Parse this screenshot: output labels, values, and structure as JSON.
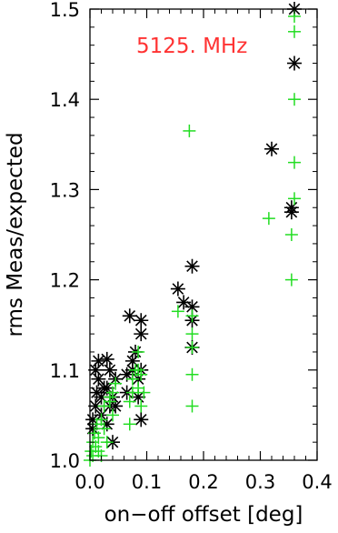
{
  "chart_data": {
    "type": "scatter",
    "annotation": "5125. MHz",
    "xlabel": "on−off offset [deg]",
    "ylabel": "rms Meas/expected",
    "xlim": [
      0.0,
      0.4
    ],
    "ylim": [
      1.0,
      1.5
    ],
    "xticks": [
      "0.0",
      "0.1",
      "0.2",
      "0.3",
      "0.4"
    ],
    "yticks": [
      "1.0",
      "1.1",
      "1.2",
      "1.3",
      "1.4",
      "1.5"
    ],
    "grid": false,
    "colors": {
      "annotation": "#ff3333",
      "asterisk_series": "#000000",
      "plus_series": "#22dd22"
    },
    "series": [
      {
        "marker": "asterisk",
        "color": "#000000",
        "points": [
          [
            0.005,
            1.035
          ],
          [
            0.005,
            1.045
          ],
          [
            0.01,
            1.06
          ],
          [
            0.01,
            1.1
          ],
          [
            0.012,
            1.075
          ],
          [
            0.015,
            1.11
          ],
          [
            0.015,
            1.09
          ],
          [
            0.02,
            1.05
          ],
          [
            0.02,
            1.07
          ],
          [
            0.025,
            1.08
          ],
          [
            0.03,
            1.112
          ],
          [
            0.03,
            1.08
          ],
          [
            0.03,
            1.04
          ],
          [
            0.035,
            1.06
          ],
          [
            0.035,
            1.1
          ],
          [
            0.04,
            1.07
          ],
          [
            0.045,
            1.09
          ],
          [
            0.045,
            1.06
          ],
          [
            0.04,
            1.02
          ],
          [
            0.065,
            1.095
          ],
          [
            0.065,
            1.075
          ],
          [
            0.07,
            1.16
          ],
          [
            0.075,
            1.11
          ],
          [
            0.075,
            1.1
          ],
          [
            0.08,
            1.12
          ],
          [
            0.085,
            1.09
          ],
          [
            0.085,
            1.07
          ],
          [
            0.09,
            1.155
          ],
          [
            0.09,
            1.14
          ],
          [
            0.09,
            1.1
          ],
          [
            0.09,
            1.045
          ],
          [
            0.155,
            1.19
          ],
          [
            0.165,
            1.175
          ],
          [
            0.18,
            1.215
          ],
          [
            0.18,
            1.17
          ],
          [
            0.18,
            1.155
          ],
          [
            0.18,
            1.125
          ],
          [
            0.32,
            1.345
          ],
          [
            0.355,
            1.28
          ],
          [
            0.355,
            1.275
          ],
          [
            0.36,
            1.44
          ],
          [
            0.36,
            1.5
          ]
        ]
      },
      {
        "marker": "plus",
        "color": "#22dd22",
        "points": [
          [
            0.0,
            1.0
          ],
          [
            0.002,
            1.01
          ],
          [
            0.005,
            1.005
          ],
          [
            0.005,
            1.02
          ],
          [
            0.008,
            1.03
          ],
          [
            0.01,
            1.015
          ],
          [
            0.012,
            1.04
          ],
          [
            0.015,
            1.01
          ],
          [
            0.015,
            1.025
          ],
          [
            0.02,
            1.005
          ],
          [
            0.02,
            1.045
          ],
          [
            0.025,
            1.06
          ],
          [
            0.025,
            1.035
          ],
          [
            0.03,
            1.02
          ],
          [
            0.035,
            1.07
          ],
          [
            0.035,
            1.065
          ],
          [
            0.04,
            1.075
          ],
          [
            0.04,
            1.05
          ],
          [
            0.045,
            1.085
          ],
          [
            0.07,
            1.04
          ],
          [
            0.07,
            1.065
          ],
          [
            0.075,
            1.075
          ],
          [
            0.075,
            1.09
          ],
          [
            0.08,
            1.1
          ],
          [
            0.085,
            1.12
          ],
          [
            0.085,
            1.1
          ],
          [
            0.085,
            1.08
          ],
          [
            0.09,
            1.095
          ],
          [
            0.09,
            1.06
          ],
          [
            0.095,
            1.075
          ],
          [
            0.155,
            1.165
          ],
          [
            0.175,
            1.365
          ],
          [
            0.18,
            1.14
          ],
          [
            0.18,
            1.125
          ],
          [
            0.18,
            1.095
          ],
          [
            0.18,
            1.06
          ],
          [
            0.18,
            1.16
          ],
          [
            0.315,
            1.268
          ],
          [
            0.355,
            1.2
          ],
          [
            0.355,
            1.25
          ],
          [
            0.36,
            1.29
          ],
          [
            0.36,
            1.33
          ],
          [
            0.36,
            1.4
          ],
          [
            0.36,
            1.475
          ],
          [
            0.36,
            1.492
          ]
        ]
      }
    ]
  }
}
